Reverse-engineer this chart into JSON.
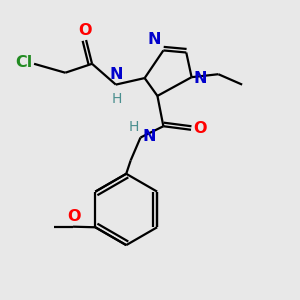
{
  "bg_color": "#e8e8e8",
  "bond_color": "#000000",
  "bond_width": 1.6,
  "figsize": [
    3.0,
    3.0
  ],
  "dpi": 100,
  "colors": {
    "C": "#000000",
    "N": "#0000cc",
    "O": "#ff0000",
    "Cl": "#228B22",
    "H_label": "#4a8f8f"
  }
}
